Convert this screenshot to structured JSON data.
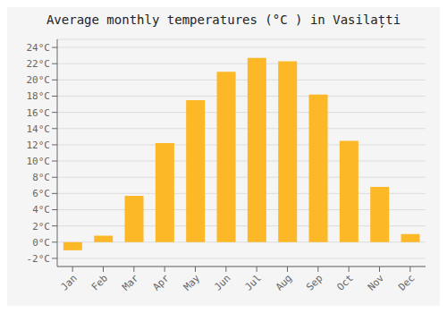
{
  "chart_data": {
    "type": "bar",
    "title": "Average monthly temperatures (°C ) in Vasilațti",
    "categories": [
      "Jan",
      "Feb",
      "Mar",
      "Apr",
      "May",
      "Jun",
      "Jul",
      "Aug",
      "Sep",
      "Oct",
      "Nov",
      "Dec"
    ],
    "values": [
      -1.0,
      0.8,
      5.7,
      12.2,
      17.5,
      21.0,
      22.7,
      22.3,
      18.2,
      12.5,
      6.8,
      1.0
    ],
    "color": "#FDB827",
    "ylim": [
      -3,
      25
    ],
    "yticks": [
      {
        "value": -2,
        "label": "-2°C"
      },
      {
        "value": 0,
        "label": "0°C"
      },
      {
        "value": 2,
        "label": "2°C"
      },
      {
        "value": 4,
        "label": "4°C"
      },
      {
        "value": 6,
        "label": "6°C"
      },
      {
        "value": 8,
        "label": "8°C"
      },
      {
        "value": 10,
        "label": "10°C"
      },
      {
        "value": 12,
        "label": "12°C"
      },
      {
        "value": 14,
        "label": "14°C"
      },
      {
        "value": 16,
        "label": "16°C"
      },
      {
        "value": 18,
        "label": "18°C"
      },
      {
        "value": 20,
        "label": "20°C"
      },
      {
        "value": 22,
        "label": "22°C"
      },
      {
        "value": 24,
        "label": "24°C"
      }
    ],
    "grid": true
  }
}
